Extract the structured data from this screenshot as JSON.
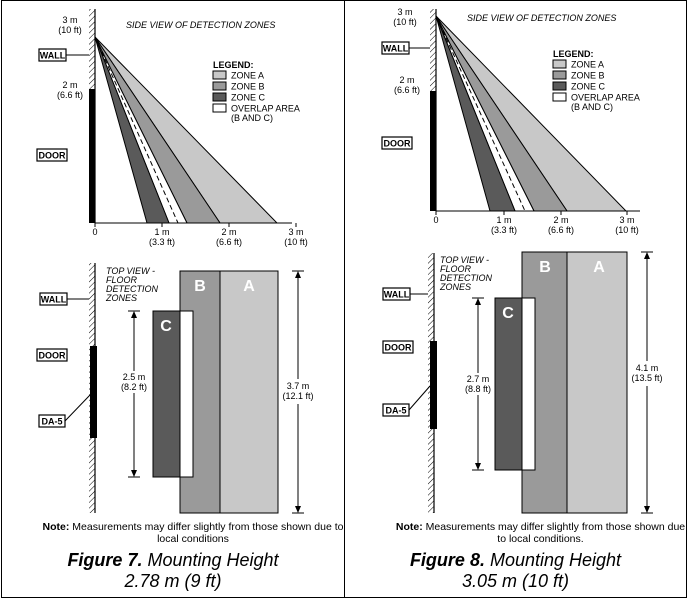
{
  "figures": [
    {
      "side_title": "SIDE VIEW OF DETECTION ZONES",
      "height_label_top": [
        "3 m",
        "(10 ft)"
      ],
      "height_label_mid": [
        "2 m",
        "(6.6 ft)"
      ],
      "wall_label": "WALL",
      "door_label": "DOOR",
      "da5_label": "DA-5",
      "legend_title": "LEGEND:",
      "legend_items": [
        "ZONE A",
        "ZONE B",
        "ZONE C",
        "OVERLAP AREA",
        "(B AND C)"
      ],
      "x_axis_labels": {
        "zero": "0",
        "one": [
          "1 m",
          "(3.3 ft)"
        ],
        "two": [
          "2 m",
          "(6.6 ft)"
        ],
        "three": [
          "3 m",
          "(10 ft)"
        ]
      },
      "top_title": [
        "TOP VIEW -",
        "FLOOR",
        "DETECTION",
        "ZONES"
      ],
      "zone_letters": [
        "A",
        "B",
        "C"
      ],
      "dim_small": [
        "2.5 m",
        "(8.2 ft)"
      ],
      "dim_large": [
        "3.7 m",
        "(12.1 ft)"
      ],
      "note_bold": "Note:",
      "note_text": " Measurements may differ slightly from those shown due to local conditions",
      "caption_bold": "Figure 7.",
      "caption_rest": " Mounting Height",
      "caption_line2": "2.78 m (9 ft)"
    },
    {
      "side_title": "SIDE VIEW OF DETECTION ZONES",
      "height_label_top": [
        "3 m",
        "(10 ft)"
      ],
      "height_label_mid": [
        "2 m",
        "(6.6 ft)"
      ],
      "wall_label": "WALL",
      "door_label": "DOOR",
      "da5_label": "DA-5",
      "legend_title": "LEGEND:",
      "legend_items": [
        "ZONE A",
        "ZONE B",
        "ZONE C",
        "OVERLAP AREA",
        "(B AND C)"
      ],
      "x_axis_labels": {
        "zero": "0",
        "one": [
          "1 m",
          "(3.3 ft)"
        ],
        "two": [
          "2 m",
          "(6.6 ft)"
        ],
        "three": [
          "3 m",
          "(10 ft)"
        ]
      },
      "top_title": [
        "TOP VIEW -",
        "FLOOR",
        "DETECTION",
        "ZONES"
      ],
      "zone_letters": [
        "A",
        "B",
        "C"
      ],
      "dim_small": [
        "2.7 m",
        "(8.8 ft)"
      ],
      "dim_large": [
        "4.1 m",
        "(13.5 ft)"
      ],
      "note_bold": "Note:",
      "note_text": " Measurements may differ slightly from those shown due to local conditions.",
      "caption_bold": "Figure 8.",
      "caption_rest": " Mounting Height",
      "caption_line2": "3.05 m (10 ft)"
    }
  ],
  "colors": {
    "zone_a": "#c8c8c8",
    "zone_b": "#9a9a9a",
    "zone_c": "#5a5a5a",
    "overlap": "#ffffff"
  }
}
